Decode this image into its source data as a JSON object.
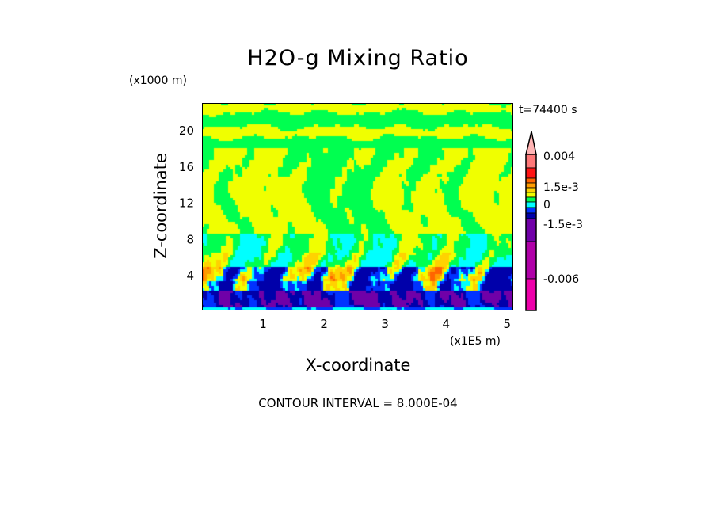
{
  "chart_data": {
    "type": "heatmap",
    "title": "H2O-g Mixing Ratio",
    "xlabel": "X-coordinate",
    "ylabel": "Z-coordinate",
    "x_unit": "(x1E5 m)",
    "y_unit": "(x1000 m)",
    "time_label": "t=74400 s",
    "footer": "CONTOUR INTERVAL = 8.000E-04",
    "xlim": [
      0,
      5.1
    ],
    "ylim": [
      0,
      22.9
    ],
    "xticks": [
      1,
      2,
      3,
      4,
      5
    ],
    "yticks": [
      4,
      8,
      12,
      16,
      20
    ],
    "colorbar": {
      "tick_labels": [
        {
          "label": "0.004",
          "value": 0.004
        },
        {
          "label": "1.5e-3",
          "value": 0.0015
        },
        {
          "label": "0",
          "value": 0
        },
        {
          "label": "-1.5e-3",
          "value": -0.0015
        },
        {
          "label": "-0.006",
          "value": -0.006
        }
      ],
      "colors_top_to_bottom": [
        "#ffb4b4",
        "#ff7878",
        "#ff1414",
        "#ff6400",
        "#ff9c00",
        "#ffd200",
        "#f0ff00",
        "#00ff50",
        "#00ffff",
        "#0032ff",
        "#0000aa",
        "#7000a8",
        "#b000a8",
        "#ee00aa"
      ]
    }
  }
}
